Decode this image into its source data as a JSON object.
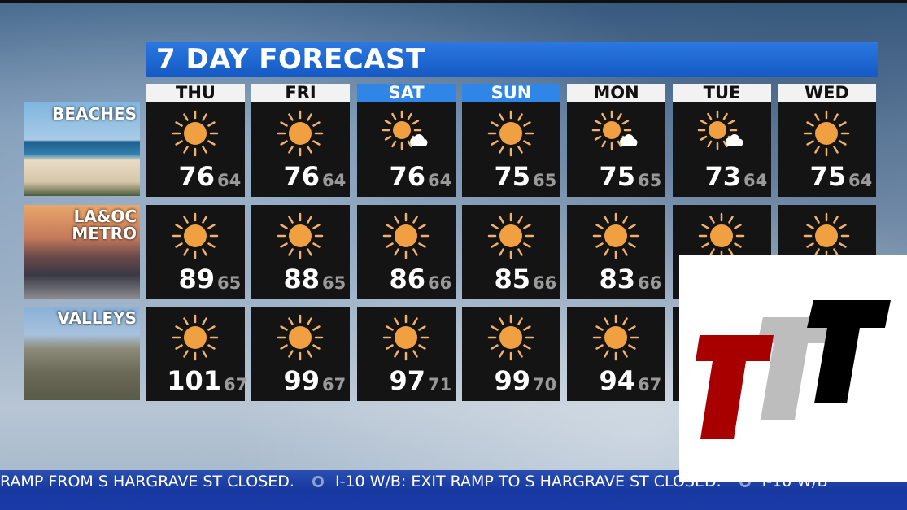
{
  "title": "7 DAY FORECAST",
  "regions": [
    {
      "label": "BEACHES"
    },
    {
      "label": "LA&OC\nMETRO"
    },
    {
      "label": "VALLEYS"
    }
  ],
  "days": [
    {
      "name": "THU",
      "weekend": false,
      "forecasts": [
        {
          "icon": "sun-icon",
          "hi": "76",
          "lo": "64"
        },
        {
          "icon": "sun-icon",
          "hi": "89",
          "lo": "65"
        },
        {
          "icon": "sun-icon",
          "hi": "101",
          "lo": "67"
        }
      ]
    },
    {
      "name": "FRI",
      "weekend": false,
      "forecasts": [
        {
          "icon": "sun-icon",
          "hi": "76",
          "lo": "64"
        },
        {
          "icon": "sun-icon",
          "hi": "88",
          "lo": "65"
        },
        {
          "icon": "sun-icon",
          "hi": "99",
          "lo": "67"
        }
      ]
    },
    {
      "name": "SAT",
      "weekend": true,
      "forecasts": [
        {
          "icon": "partly-cloudy-icon",
          "hi": "76",
          "lo": "64"
        },
        {
          "icon": "sun-icon",
          "hi": "86",
          "lo": "66"
        },
        {
          "icon": "sun-icon",
          "hi": "97",
          "lo": "71"
        }
      ]
    },
    {
      "name": "SUN",
      "weekend": true,
      "forecasts": [
        {
          "icon": "sun-icon",
          "hi": "75",
          "lo": "65"
        },
        {
          "icon": "sun-icon",
          "hi": "85",
          "lo": "66"
        },
        {
          "icon": "sun-icon",
          "hi": "99",
          "lo": "70"
        }
      ]
    },
    {
      "name": "MON",
      "weekend": false,
      "forecasts": [
        {
          "icon": "partly-cloudy-icon",
          "hi": "75",
          "lo": "65"
        },
        {
          "icon": "sun-icon",
          "hi": "83",
          "lo": "66"
        },
        {
          "icon": "sun-icon",
          "hi": "94",
          "lo": "67"
        }
      ]
    },
    {
      "name": "TUE",
      "weekend": false,
      "forecasts": [
        {
          "icon": "partly-cloudy-icon",
          "hi": "73",
          "lo": "64"
        },
        {
          "icon": "sun-icon",
          "hi": "",
          "lo": ""
        },
        {
          "icon": "",
          "hi": "",
          "lo": ""
        }
      ]
    },
    {
      "name": "WED",
      "weekend": false,
      "forecasts": [
        {
          "icon": "sun-icon",
          "hi": "75",
          "lo": "64"
        },
        {
          "icon": "sun-icon",
          "hi": "",
          "lo": ""
        },
        {
          "icon": "",
          "hi": "",
          "lo": ""
        }
      ]
    }
  ],
  "ticker": {
    "segments": [
      "RAMP FROM S HARGRAVE ST CLOSED.",
      "I-10 W/B: EXIT RAMP TO S HARGRAVE ST CLOSED.",
      "I-10 W/B"
    ]
  },
  "colors": {
    "title_bar": "#1a66d6",
    "weekend_header": "#2f86e6",
    "sun": "#f0a040",
    "ticker": "#1a3aa8",
    "logo_red": "#a80000",
    "logo_gray": "#bdbdbd",
    "logo_black": "#000000"
  }
}
